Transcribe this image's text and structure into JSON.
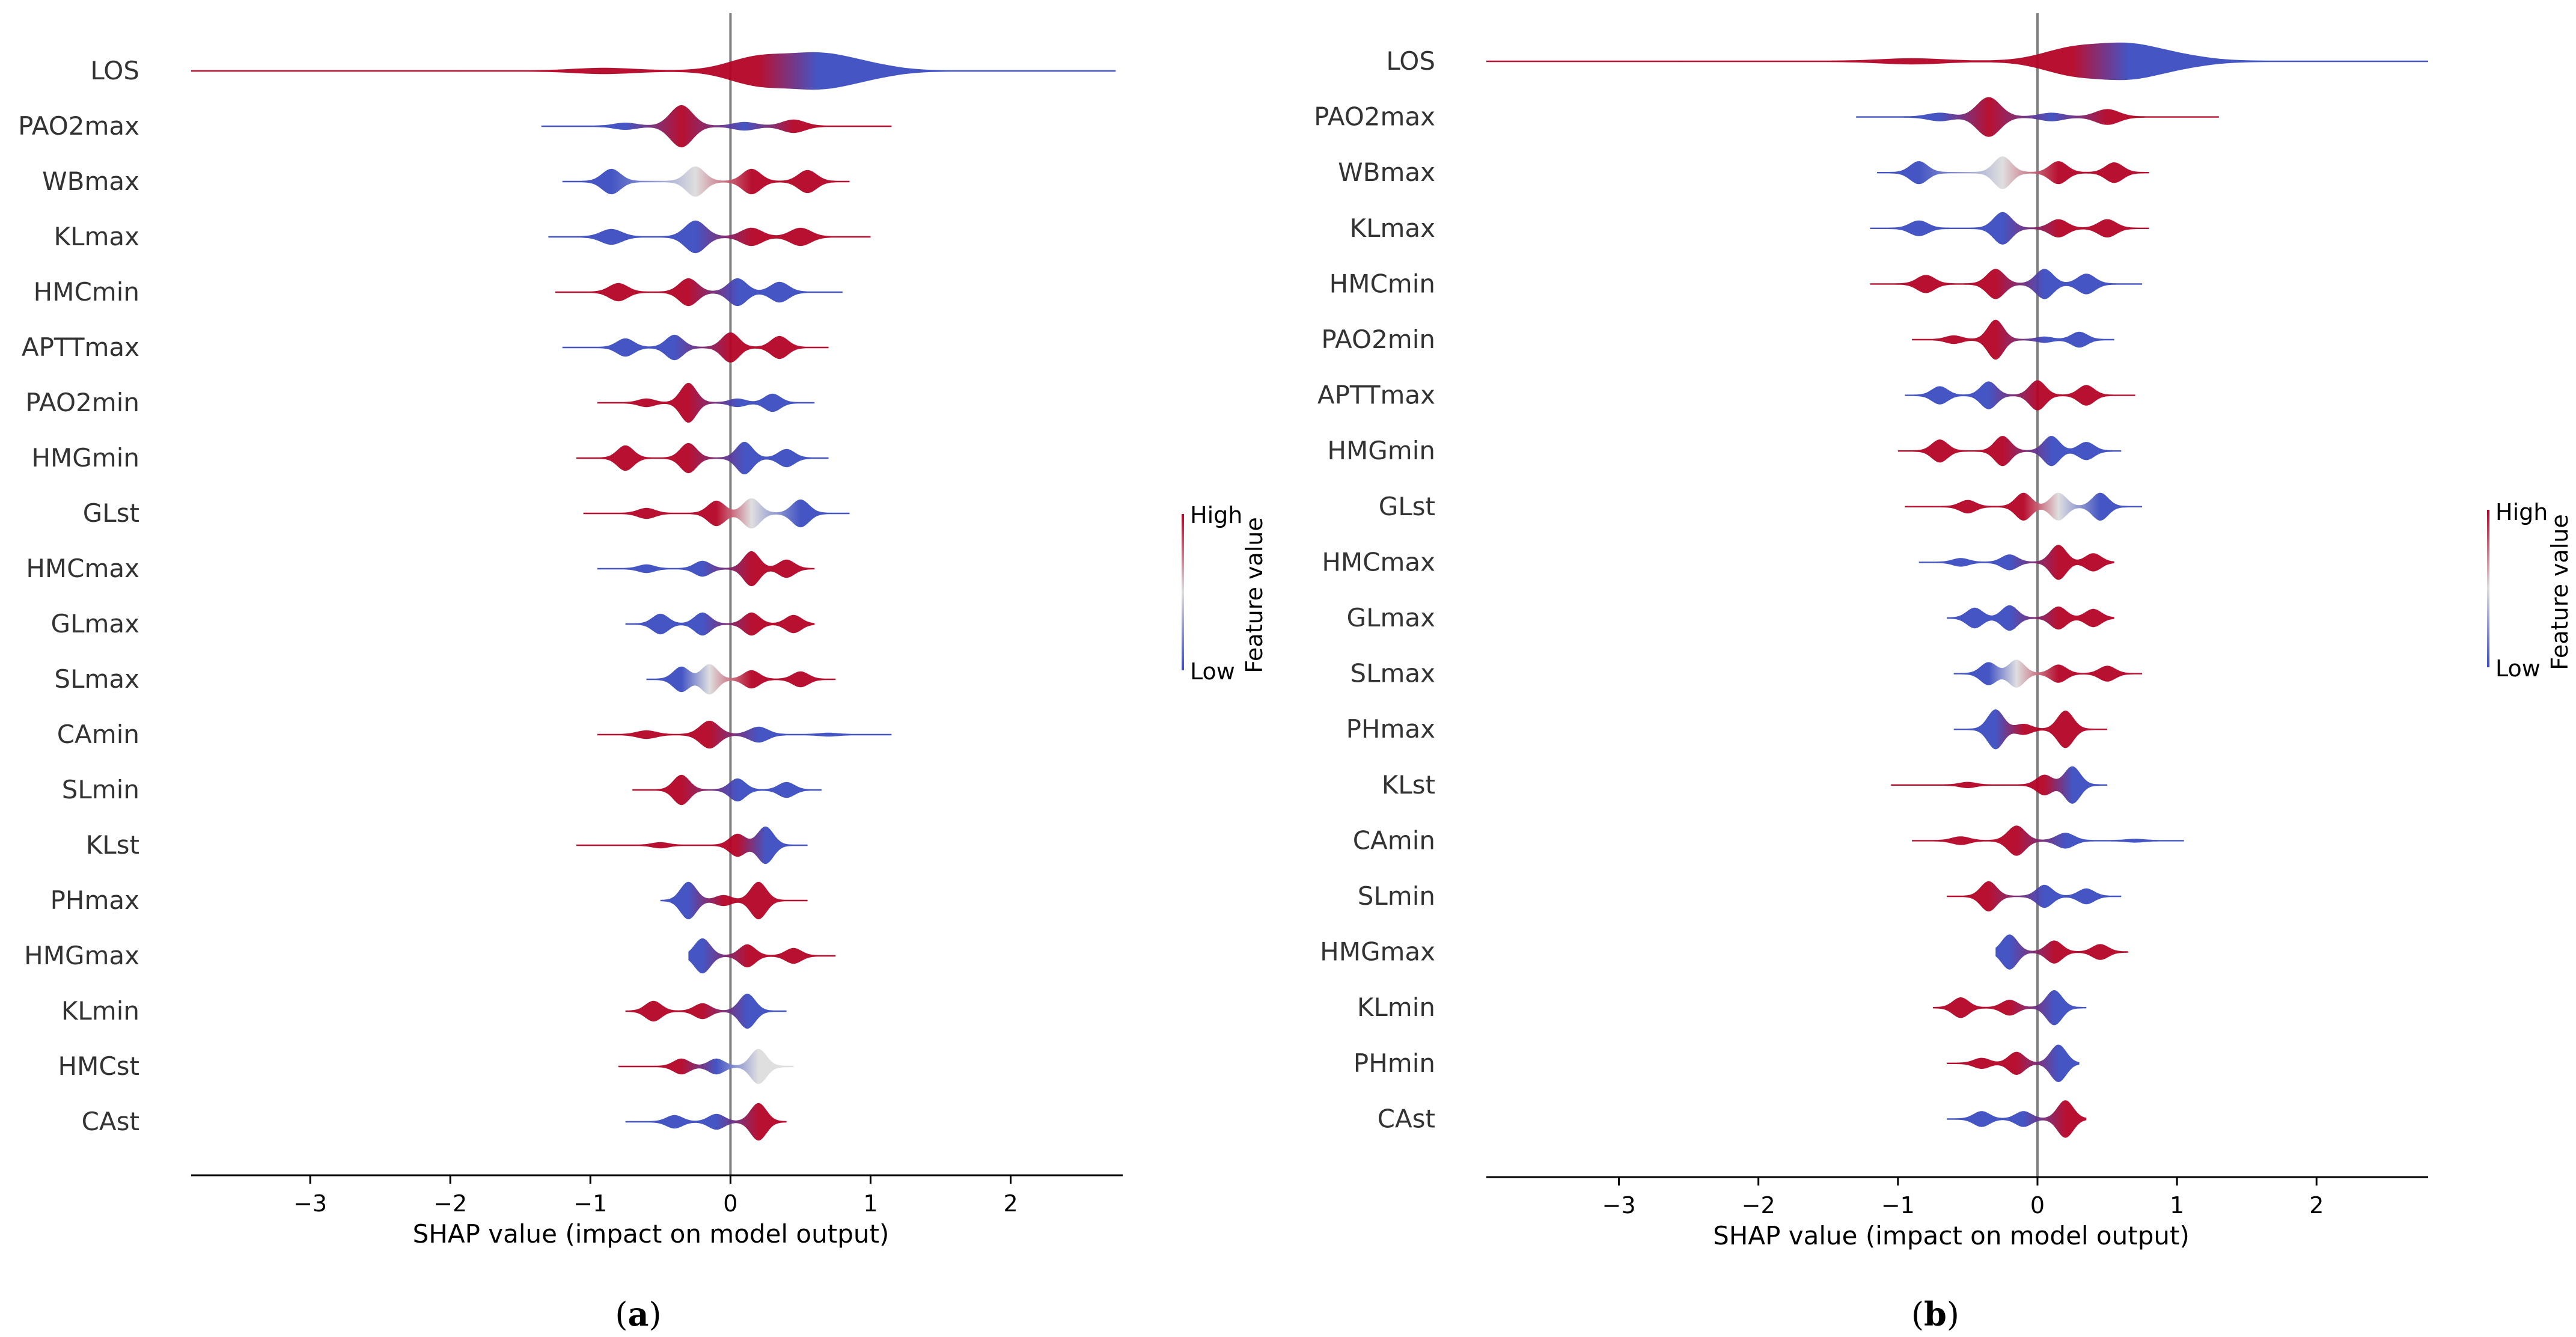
{
  "colors": {
    "low": "#3b4cc0",
    "mid": "#dddddd",
    "high": "#b40426",
    "axis": "#000000",
    "zero_line": "#7f7f7f",
    "label_text": "#333333"
  },
  "legend": {
    "title": "Feature value",
    "high_label": "High",
    "low_label": "Low"
  },
  "chart_data": [
    {
      "type": "violin",
      "panel_label": "(a)",
      "caption_letter": "a",
      "xlabel": "SHAP value (impact on model output)",
      "xlim": [
        -3.85,
        2.8
      ],
      "xticks": [
        -3,
        -2,
        -1,
        0,
        1,
        2
      ],
      "xtick_labels": [
        "−3",
        "−2",
        "−1",
        "0",
        "1",
        "2"
      ],
      "features": [
        {
          "name": "LOS",
          "min": -3.85,
          "max": 2.75,
          "peaks": [
            [
              -0.9,
              0.1,
              "high"
            ],
            [
              0.2,
              0.55,
              "high"
            ],
            [
              0.62,
              0.6,
              "low"
            ],
            [
              0.95,
              0.25,
              "low"
            ]
          ]
        },
        {
          "name": "PAO2max",
          "min": -1.35,
          "max": 1.15,
          "peaks": [
            [
              -0.75,
              0.12,
              "low"
            ],
            [
              -0.35,
              0.85,
              "high"
            ],
            [
              0.1,
              0.15,
              "low"
            ],
            [
              0.45,
              0.25,
              "high"
            ]
          ]
        },
        {
          "name": "WBmax",
          "min": -1.2,
          "max": 0.85,
          "peaks": [
            [
              -0.85,
              0.5,
              "low"
            ],
            [
              -0.25,
              0.6,
              "mid"
            ],
            [
              0.15,
              0.5,
              "high"
            ],
            [
              0.55,
              0.45,
              "high"
            ]
          ]
        },
        {
          "name": "KLmax",
          "min": -1.3,
          "max": 1.0,
          "peaks": [
            [
              -0.85,
              0.3,
              "low"
            ],
            [
              -0.25,
              0.65,
              "low"
            ],
            [
              0.15,
              0.35,
              "high"
            ],
            [
              0.5,
              0.35,
              "high"
            ]
          ]
        },
        {
          "name": "HMCmin",
          "min": -1.25,
          "max": 0.8,
          "peaks": [
            [
              -0.8,
              0.35,
              "high"
            ],
            [
              -0.3,
              0.55,
              "high"
            ],
            [
              0.05,
              0.55,
              "low"
            ],
            [
              0.35,
              0.4,
              "low"
            ]
          ]
        },
        {
          "name": "APTTmax",
          "min": -1.2,
          "max": 0.7,
          "peaks": [
            [
              -0.75,
              0.35,
              "low"
            ],
            [
              -0.4,
              0.5,
              "low"
            ],
            [
              0.0,
              0.6,
              "high"
            ],
            [
              0.35,
              0.45,
              "high"
            ]
          ]
        },
        {
          "name": "PAO2min",
          "min": -0.95,
          "max": 0.6,
          "peaks": [
            [
              -0.6,
              0.15,
              "high"
            ],
            [
              -0.3,
              0.8,
              "high"
            ],
            [
              0.05,
              0.15,
              "low"
            ],
            [
              0.3,
              0.35,
              "low"
            ]
          ]
        },
        {
          "name": "HMGmin",
          "min": -1.1,
          "max": 0.7,
          "peaks": [
            [
              -0.75,
              0.5,
              "high"
            ],
            [
              -0.3,
              0.6,
              "high"
            ],
            [
              0.1,
              0.65,
              "low"
            ],
            [
              0.4,
              0.35,
              "low"
            ]
          ]
        },
        {
          "name": "GLst",
          "min": -1.05,
          "max": 0.85,
          "peaks": [
            [
              -0.6,
              0.2,
              "high"
            ],
            [
              -0.1,
              0.5,
              "high"
            ],
            [
              0.15,
              0.6,
              "mid"
            ],
            [
              0.5,
              0.55,
              "low"
            ]
          ]
        },
        {
          "name": "HMCmax",
          "min": -0.95,
          "max": 0.6,
          "peaks": [
            [
              -0.6,
              0.15,
              "low"
            ],
            [
              -0.2,
              0.3,
              "low"
            ],
            [
              0.15,
              0.7,
              "high"
            ],
            [
              0.4,
              0.35,
              "high"
            ]
          ]
        },
        {
          "name": "GLmax",
          "min": -0.75,
          "max": 0.6,
          "peaks": [
            [
              -0.5,
              0.4,
              "low"
            ],
            [
              -0.2,
              0.45,
              "low"
            ],
            [
              0.15,
              0.45,
              "high"
            ],
            [
              0.45,
              0.35,
              "high"
            ]
          ]
        },
        {
          "name": "SLmax",
          "min": -0.6,
          "max": 0.75,
          "peaks": [
            [
              -0.35,
              0.5,
              "low"
            ],
            [
              -0.15,
              0.6,
              "mid"
            ],
            [
              0.15,
              0.35,
              "high"
            ],
            [
              0.5,
              0.3,
              "high"
            ]
          ]
        },
        {
          "name": "CAmin",
          "min": -0.95,
          "max": 1.15,
          "peaks": [
            [
              -0.6,
              0.15,
              "high"
            ],
            [
              -0.15,
              0.55,
              "high"
            ],
            [
              0.2,
              0.3,
              "low"
            ],
            [
              0.7,
              0.05,
              "low"
            ]
          ]
        },
        {
          "name": "SLmin",
          "min": -0.7,
          "max": 0.65,
          "peaks": [
            [
              -0.35,
              0.6,
              "high"
            ],
            [
              0.05,
              0.45,
              "low"
            ],
            [
              0.4,
              0.3,
              "low"
            ]
          ]
        },
        {
          "name": "KLst",
          "min": -1.1,
          "max": 0.55,
          "peaks": [
            [
              -0.5,
              0.1,
              "high"
            ],
            [
              0.05,
              0.45,
              "high"
            ],
            [
              0.25,
              0.75,
              "low"
            ]
          ]
        },
        {
          "name": "PHmax",
          "min": -0.5,
          "max": 0.55,
          "peaks": [
            [
              -0.3,
              0.75,
              "low"
            ],
            [
              -0.05,
              0.2,
              "high"
            ],
            [
              0.2,
              0.75,
              "high"
            ]
          ]
        },
        {
          "name": "HMGmax",
          "min": -0.3,
          "max": 0.75,
          "peaks": [
            [
              -0.2,
              0.7,
              "low"
            ],
            [
              0.12,
              0.45,
              "high"
            ],
            [
              0.45,
              0.3,
              "high"
            ]
          ]
        },
        {
          "name": "KLmin",
          "min": -0.75,
          "max": 0.4,
          "peaks": [
            [
              -0.55,
              0.4,
              "high"
            ],
            [
              -0.2,
              0.3,
              "high"
            ],
            [
              0.12,
              0.7,
              "low"
            ]
          ]
        },
        {
          "name": "HMCst",
          "min": -0.8,
          "max": 0.45,
          "peaks": [
            [
              -0.35,
              0.3,
              "high"
            ],
            [
              -0.1,
              0.3,
              "low"
            ],
            [
              0.2,
              0.7,
              "mid"
            ]
          ]
        },
        {
          "name": "CAst",
          "min": -0.75,
          "max": 0.4,
          "peaks": [
            [
              -0.4,
              0.25,
              "low"
            ],
            [
              -0.1,
              0.3,
              "low"
            ],
            [
              0.2,
              0.75,
              "high"
            ]
          ]
        }
      ]
    },
    {
      "type": "violin",
      "panel_label": "(b)",
      "caption_letter": "b",
      "xlabel": "SHAP value (impact on model output)",
      "xlim": [
        -3.95,
        2.8
      ],
      "xticks": [
        -3,
        -2,
        -1,
        0,
        1,
        2
      ],
      "xtick_labels": [
        "−3",
        "−2",
        "−1",
        "0",
        "1",
        "2"
      ],
      "features": [
        {
          "name": "LOS",
          "min": -3.95,
          "max": 2.8,
          "peaks": [
            [
              -0.9,
              0.1,
              "high"
            ],
            [
              0.25,
              0.5,
              "high"
            ],
            [
              0.65,
              0.6,
              "low"
            ],
            [
              1.0,
              0.2,
              "low"
            ]
          ]
        },
        {
          "name": "PAO2max",
          "min": -1.3,
          "max": 1.3,
          "peaks": [
            [
              -0.7,
              0.15,
              "low"
            ],
            [
              -0.35,
              0.8,
              "high"
            ],
            [
              0.1,
              0.15,
              "low"
            ],
            [
              0.5,
              0.3,
              "high"
            ]
          ]
        },
        {
          "name": "WBmax",
          "min": -1.15,
          "max": 0.8,
          "peaks": [
            [
              -0.85,
              0.45,
              "low"
            ],
            [
              -0.25,
              0.65,
              "mid"
            ],
            [
              0.15,
              0.45,
              "high"
            ],
            [
              0.55,
              0.4,
              "high"
            ]
          ]
        },
        {
          "name": "KLmax",
          "min": -1.2,
          "max": 0.8,
          "peaks": [
            [
              -0.85,
              0.3,
              "low"
            ],
            [
              -0.25,
              0.65,
              "low"
            ],
            [
              0.15,
              0.35,
              "high"
            ],
            [
              0.5,
              0.35,
              "high"
            ]
          ]
        },
        {
          "name": "HMCmin",
          "min": -1.2,
          "max": 0.75,
          "peaks": [
            [
              -0.8,
              0.35,
              "high"
            ],
            [
              -0.3,
              0.6,
              "high"
            ],
            [
              0.05,
              0.6,
              "low"
            ],
            [
              0.35,
              0.4,
              "low"
            ]
          ]
        },
        {
          "name": "PAO2min",
          "min": -0.9,
          "max": 0.55,
          "peaks": [
            [
              -0.6,
              0.15,
              "high"
            ],
            [
              -0.3,
              0.8,
              "high"
            ],
            [
              0.05,
              0.1,
              "low"
            ],
            [
              0.3,
              0.3,
              "low"
            ]
          ]
        },
        {
          "name": "APTTmax",
          "min": -0.95,
          "max": 0.7,
          "peaks": [
            [
              -0.7,
              0.35,
              "low"
            ],
            [
              -0.35,
              0.55,
              "low"
            ],
            [
              0.0,
              0.6,
              "high"
            ],
            [
              0.35,
              0.4,
              "high"
            ]
          ]
        },
        {
          "name": "HMGmin",
          "min": -1.0,
          "max": 0.6,
          "peaks": [
            [
              -0.7,
              0.45,
              "high"
            ],
            [
              -0.25,
              0.6,
              "high"
            ],
            [
              0.1,
              0.6,
              "low"
            ],
            [
              0.35,
              0.35,
              "low"
            ]
          ]
        },
        {
          "name": "GLst",
          "min": -0.95,
          "max": 0.75,
          "peaks": [
            [
              -0.5,
              0.25,
              "high"
            ],
            [
              -0.1,
              0.55,
              "high"
            ],
            [
              0.15,
              0.55,
              "mid"
            ],
            [
              0.45,
              0.55,
              "low"
            ]
          ]
        },
        {
          "name": "HMCmax",
          "min": -0.85,
          "max": 0.55,
          "peaks": [
            [
              -0.55,
              0.15,
              "low"
            ],
            [
              -0.2,
              0.3,
              "low"
            ],
            [
              0.15,
              0.7,
              "high"
            ],
            [
              0.4,
              0.35,
              "high"
            ]
          ]
        },
        {
          "name": "GLmax",
          "min": -0.65,
          "max": 0.55,
          "peaks": [
            [
              -0.45,
              0.4,
              "low"
            ],
            [
              -0.2,
              0.5,
              "low"
            ],
            [
              0.15,
              0.45,
              "high"
            ],
            [
              0.4,
              0.35,
              "high"
            ]
          ]
        },
        {
          "name": "SLmax",
          "min": -0.6,
          "max": 0.75,
          "peaks": [
            [
              -0.35,
              0.45,
              "low"
            ],
            [
              -0.15,
              0.55,
              "mid"
            ],
            [
              0.15,
              0.35,
              "high"
            ],
            [
              0.5,
              0.3,
              "high"
            ]
          ]
        },
        {
          "name": "PHmax",
          "min": -0.6,
          "max": 0.5,
          "peaks": [
            [
              -0.3,
              0.8,
              "low"
            ],
            [
              -0.1,
              0.2,
              "high"
            ],
            [
              0.2,
              0.75,
              "high"
            ]
          ]
        },
        {
          "name": "KLst",
          "min": -1.05,
          "max": 0.5,
          "peaks": [
            [
              -0.5,
              0.1,
              "high"
            ],
            [
              0.05,
              0.4,
              "high"
            ],
            [
              0.25,
              0.75,
              "low"
            ]
          ]
        },
        {
          "name": "CAmin",
          "min": -0.9,
          "max": 1.05,
          "peaks": [
            [
              -0.55,
              0.15,
              "high"
            ],
            [
              -0.15,
              0.6,
              "high"
            ],
            [
              0.2,
              0.3,
              "low"
            ],
            [
              0.7,
              0.05,
              "low"
            ]
          ]
        },
        {
          "name": "SLmin",
          "min": -0.65,
          "max": 0.6,
          "peaks": [
            [
              -0.35,
              0.6,
              "high"
            ],
            [
              0.05,
              0.45,
              "low"
            ],
            [
              0.35,
              0.3,
              "low"
            ]
          ]
        },
        {
          "name": "HMGmax",
          "min": -0.3,
          "max": 0.65,
          "peaks": [
            [
              -0.2,
              0.7,
              "low"
            ],
            [
              0.12,
              0.45,
              "high"
            ],
            [
              0.45,
              0.3,
              "high"
            ]
          ]
        },
        {
          "name": "KLmin",
          "min": -0.75,
          "max": 0.35,
          "peaks": [
            [
              -0.55,
              0.4,
              "high"
            ],
            [
              -0.2,
              0.3,
              "high"
            ],
            [
              0.12,
              0.7,
              "low"
            ]
          ]
        },
        {
          "name": "PHmin",
          "min": -0.65,
          "max": 0.3,
          "peaks": [
            [
              -0.4,
              0.2,
              "high"
            ],
            [
              -0.15,
              0.45,
              "high"
            ],
            [
              0.15,
              0.75,
              "low"
            ]
          ]
        },
        {
          "name": "CAst",
          "min": -0.65,
          "max": 0.35,
          "peaks": [
            [
              -0.4,
              0.3,
              "low"
            ],
            [
              -0.1,
              0.3,
              "low"
            ],
            [
              0.2,
              0.75,
              "high"
            ]
          ]
        }
      ]
    }
  ]
}
